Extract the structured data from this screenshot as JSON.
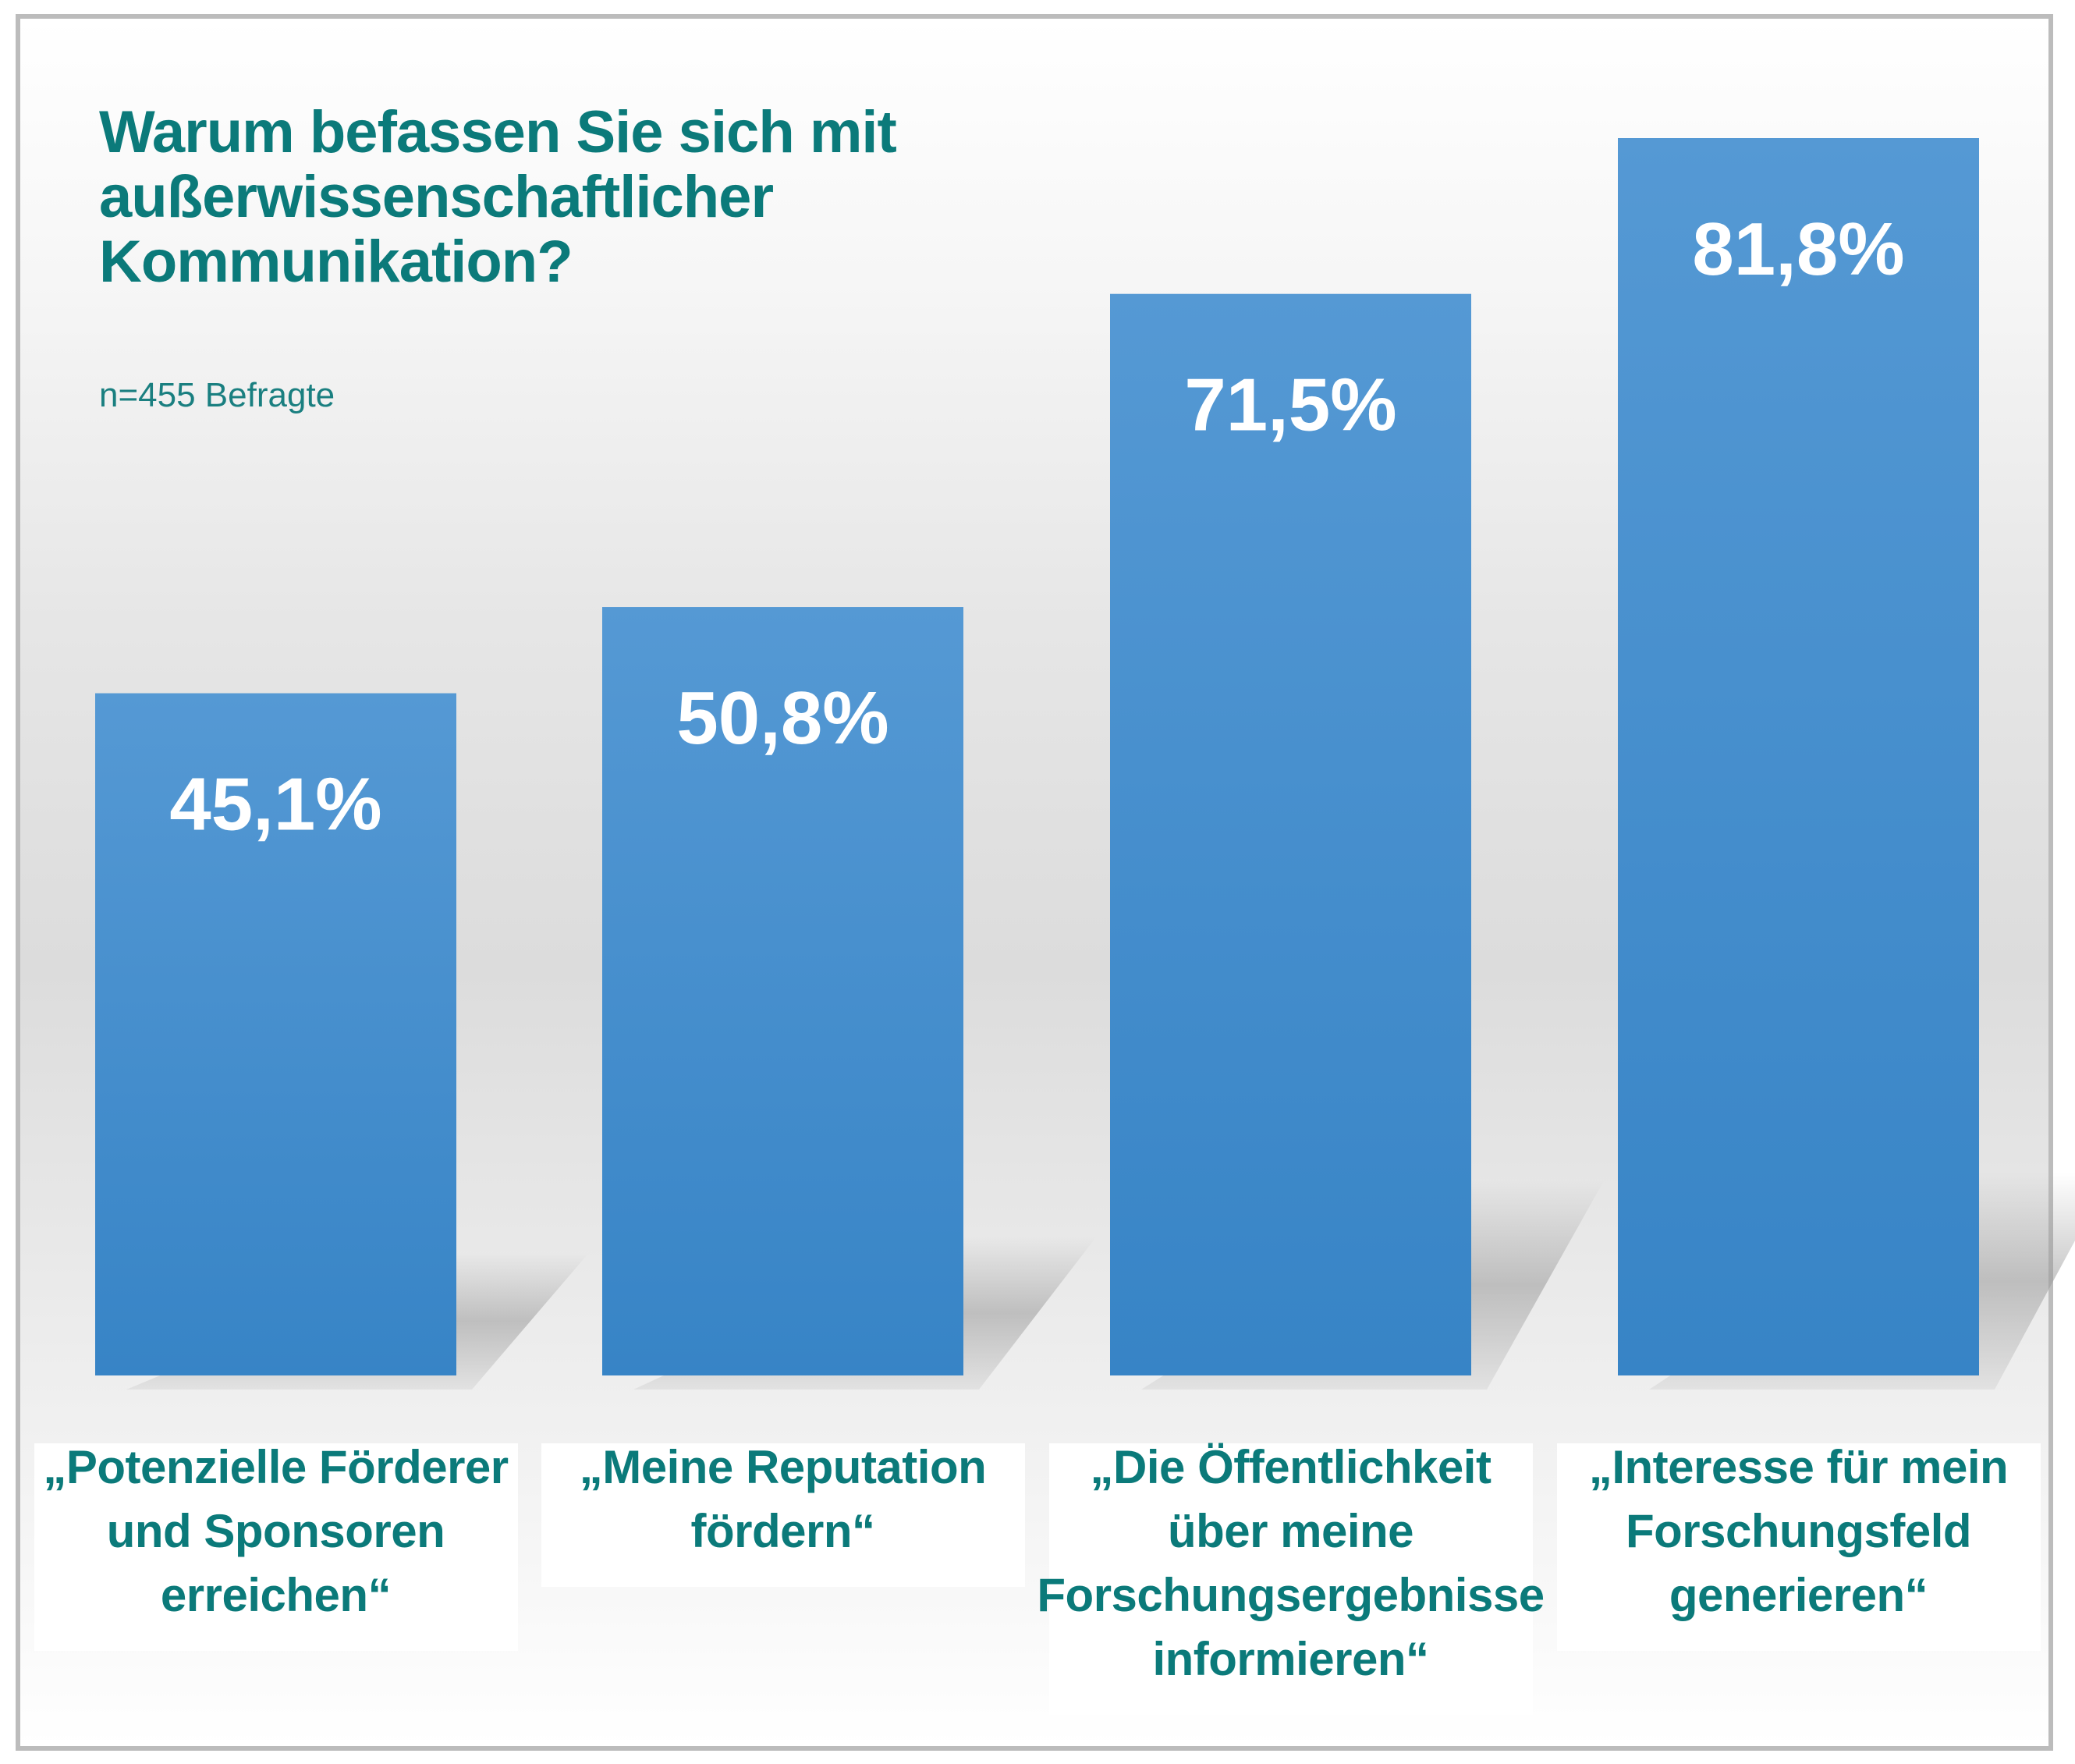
{
  "chart_data": {
    "type": "bar",
    "title": "Warum befassen Sie sich mit außerwissenschaftlicher Kommunikation?",
    "title_lines": [
      "Warum befassen Sie sich mit",
      "außerwissenschaftlicher",
      "Kommunikation?"
    ],
    "subtitle": "n=455 Befragte",
    "categories": [
      "„Potenzielle Förderer und Sponsoren erreichen“",
      "„Meine Reputation fördern“",
      "„Die Öffentlichkeit über meine Forschungsergebnisse informieren“",
      "„Interesse für mein Forschungsfeld generieren“"
    ],
    "category_lines": [
      [
        "„Potenzielle Förderer",
        "und Sponsoren",
        "erreichen“"
      ],
      [
        "„Meine Reputation",
        "fördern“"
      ],
      [
        "„Die Öffentlichkeit",
        "über meine",
        "Forschungsergebnisse",
        "informieren“"
      ],
      [
        "„Interesse für mein",
        "Forschungsfeld",
        "generieren“"
      ]
    ],
    "values": [
      45.1,
      50.8,
      71.5,
      81.8
    ],
    "value_labels": [
      "45,1%",
      "50,8%",
      "71,5%",
      "81,8%"
    ],
    "unit": "%",
    "xlabel": "",
    "ylabel": "",
    "ylim": [
      0,
      100
    ],
    "grid": false,
    "legend": "none",
    "colors": {
      "bar_top": "#5599d4",
      "bar_bottom": "#3784c6",
      "text_teal": "#0b7a7a",
      "value_text": "#ffffff"
    }
  }
}
